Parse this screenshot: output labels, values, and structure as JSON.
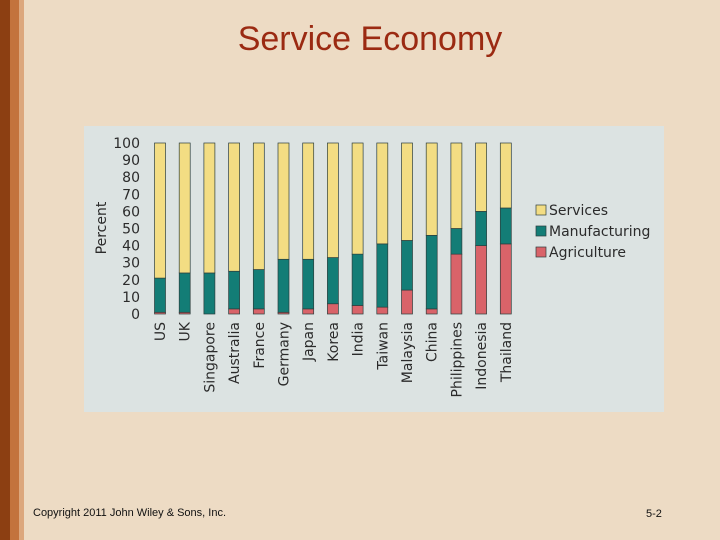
{
  "slide": {
    "title": "Service Economy",
    "copyright": "Copyright 2011 John Wiley & Sons, Inc.",
    "page_number": "5-2"
  },
  "colors": {
    "services": "#f3dd83",
    "manufacturing": "#137d76",
    "agriculture": "#d96369",
    "bar_stroke": "#2c3e3d",
    "panel": "#dce3e2",
    "title": "#9b2a12"
  },
  "chart_data": {
    "type": "bar",
    "stacked": true,
    "title": "",
    "xlabel": "",
    "ylabel": "Percent",
    "ylim": [
      0,
      100
    ],
    "yticks": [
      0,
      10,
      20,
      30,
      40,
      50,
      60,
      70,
      80,
      90,
      100
    ],
    "categories": [
      "US",
      "UK",
      "Singapore",
      "Australia",
      "France",
      "Germany",
      "Japan",
      "Korea",
      "India",
      "Taiwan",
      "Malaysia",
      "China",
      "Philippines",
      "Indonesia",
      "Thailand"
    ],
    "series": [
      {
        "name": "Agriculture",
        "values": [
          1,
          1,
          0,
          3,
          3,
          1,
          3,
          6,
          5,
          4,
          14,
          3,
          35,
          40,
          41
        ]
      },
      {
        "name": "Manufacturing",
        "values": [
          20,
          23,
          24,
          22,
          23,
          31,
          29,
          27,
          30,
          37,
          29,
          43,
          15,
          20,
          21
        ]
      },
      {
        "name": "Services",
        "values": [
          79,
          76,
          76,
          75,
          74,
          68,
          68,
          67,
          65,
          59,
          57,
          54,
          50,
          40,
          38
        ]
      }
    ],
    "legend": [
      "Services",
      "Manufacturing",
      "Agriculture"
    ],
    "legend_position": "right",
    "grid": false
  }
}
